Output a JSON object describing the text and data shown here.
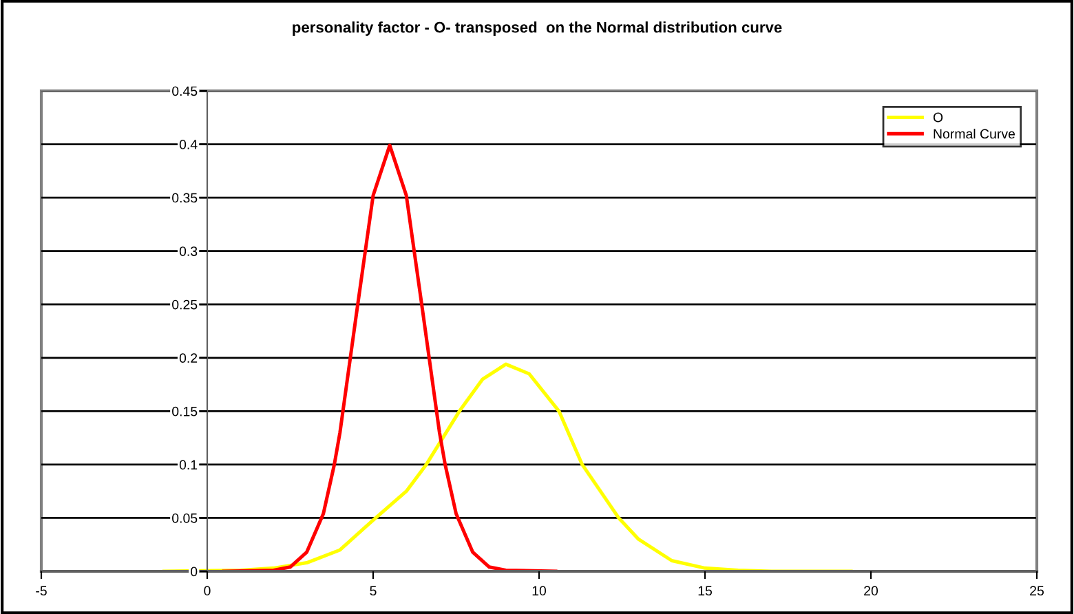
{
  "chart_data": {
    "type": "line",
    "title": "personality factor - O- transposed  on the Normal distribution curve",
    "series": [
      {
        "name": "O",
        "color": "#ffff00",
        "x": [
          -1.3,
          1,
          2,
          3,
          4,
          5,
          6,
          6.6,
          7.6,
          8.3,
          9,
          9.7,
          10.6,
          11.3,
          12.4,
          13,
          14,
          15,
          16,
          17,
          19.4
        ],
        "values": [
          0,
          0.001,
          0.003,
          0.008,
          0.02,
          0.048,
          0.075,
          0.1,
          0.15,
          0.18,
          0.194,
          0.185,
          0.15,
          0.1,
          0.05,
          0.03,
          0.01,
          0.003,
          0.001,
          0,
          0
        ]
      },
      {
        "name": "Normal Curve",
        "color": "#ff0000",
        "x": [
          0.5,
          2,
          2.5,
          3,
          3.5,
          3.83,
          4,
          4.5,
          5,
          5.5,
          6,
          6.5,
          7,
          7.17,
          7.5,
          8,
          8.5,
          9,
          10.5
        ],
        "values": [
          0,
          0.001,
          0.004,
          0.018,
          0.054,
          0.1,
          0.13,
          0.242,
          0.352,
          0.399,
          0.352,
          0.242,
          0.13,
          0.1,
          0.054,
          0.018,
          0.004,
          0.001,
          0
        ]
      }
    ],
    "xlim": [
      -5,
      25
    ],
    "xticks": [
      -5,
      0,
      5,
      10,
      15,
      20,
      25
    ],
    "ylim": [
      0,
      0.45
    ],
    "yticks": [
      0,
      0.05,
      0.1,
      0.15,
      0.2,
      0.25,
      0.3,
      0.35,
      0.4,
      0.45
    ],
    "grid": "y",
    "legend": "top right",
    "marker": "none",
    "line_style": "solid"
  }
}
